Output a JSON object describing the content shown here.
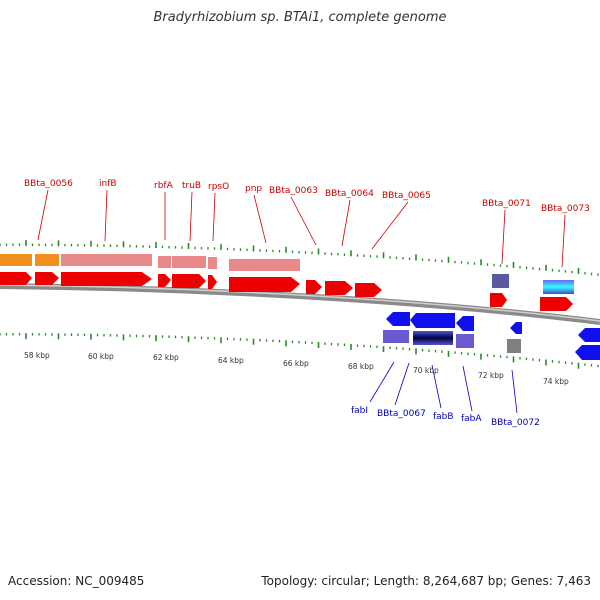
{
  "title": "Bradyrhizobium sp. BTAi1, complete genome",
  "footer": {
    "accession": "Accession: NC_009485",
    "topology": "Topology: circular; Length: 8,264,687 bp; Genes: 7,463"
  },
  "scale_labels": [
    "58 kbp",
    "60 kbp",
    "62 kbp",
    "64 kbp",
    "66 kbp",
    "68 kbp",
    "70 kbp",
    "72 kbp",
    "74 kbp"
  ],
  "forward_gene_labels": [
    "BBta_0056",
    "infB",
    "rbfA",
    "truB",
    "rpsO",
    "pnp",
    "BBta_0063",
    "BBta_0064",
    "BBta_0065",
    "BBta_0071",
    "BBta_0073"
  ],
  "reverse_gene_labels": [
    "fabI",
    "BBta_0067",
    "fabB",
    "fabA",
    "BBta_0072"
  ],
  "colors": {
    "forward_cds": "#ee0000",
    "reverse_cds": "#1010ee",
    "rrna_like": "#f09020",
    "pseudo_pink": "#e88a8a",
    "backbone": "#888888",
    "tick": "#2a8a2a",
    "forward_label": "#cc0000",
    "reverse_label": "#0000bb"
  }
}
